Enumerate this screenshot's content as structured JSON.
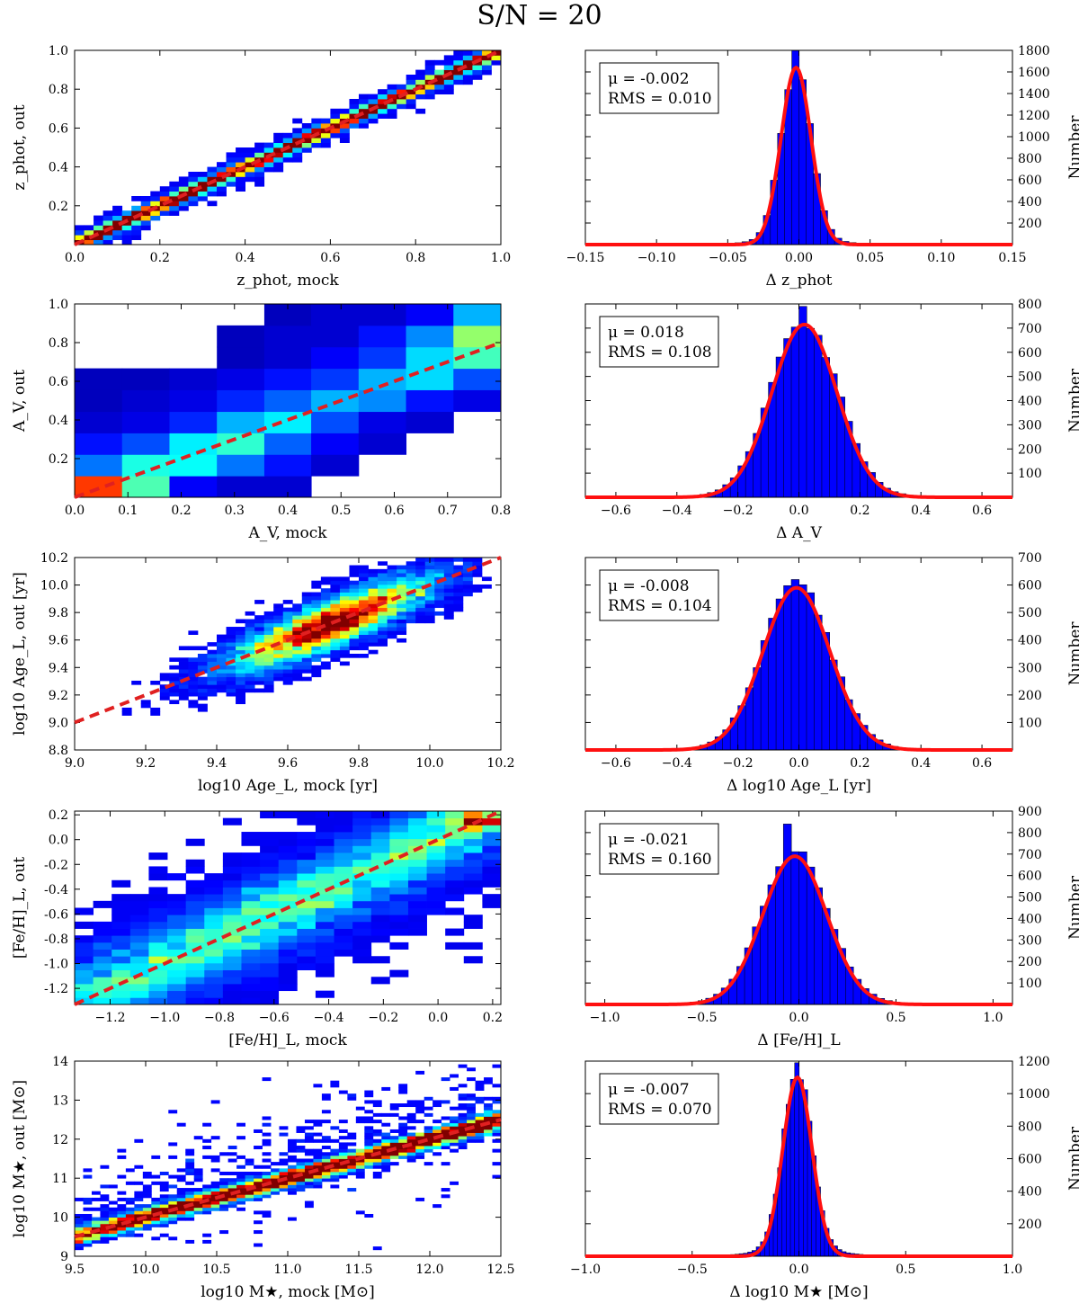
{
  "title": "S/N = 20",
  "colors": {
    "hist_fill": "#0000ff",
    "fit_line": "#ff1010",
    "identity_line": "#e02020"
  },
  "chart_data": [
    {
      "type": "heatmap",
      "id": "z-scatter",
      "xlabel": "z_phot, mock",
      "ylabel": "z_phot, out",
      "xlim": [
        0.0,
        1.0
      ],
      "ylim": [
        0.0,
        1.0
      ],
      "xticks": [
        "0.0",
        "0.2",
        "0.4",
        "0.6",
        "0.8",
        "1.0"
      ],
      "xtick_values": [
        0.0,
        0.2,
        0.4,
        0.6,
        0.8,
        1.0
      ],
      "yticks": [
        "0.2",
        "0.4",
        "0.6",
        "0.8",
        "1.0"
      ],
      "ytick_values": [
        0.2,
        0.4,
        0.6,
        0.8,
        1.0
      ],
      "identity_line": [
        [
          0.0,
          0.0
        ],
        [
          1.0,
          1.0
        ]
      ],
      "model": {
        "kind": "tight",
        "scatter": 0.015,
        "outlier_rate": 0.18,
        "outlier_spread": 0.035,
        "nbins_x": 45,
        "nbins_y": 40,
        "n": 9000,
        "peak_frac": 0.55
      }
    },
    {
      "type": "bar",
      "id": "z-hist",
      "xlabel": "Δ z_phot",
      "ylabel": "Number",
      "xlim": [
        -0.15,
        0.15
      ],
      "ylim": [
        0,
        1800
      ],
      "xticks": [
        "−0.15",
        "−0.10",
        "−0.05",
        "0.00",
        "0.05",
        "0.10",
        "0.15"
      ],
      "xtick_values": [
        -0.15,
        -0.1,
        -0.05,
        0.0,
        0.05,
        0.1,
        0.15
      ],
      "yticks": [
        "200",
        "400",
        "600",
        "800",
        "1000",
        "1200",
        "1400",
        "1600",
        "1800"
      ],
      "ytick_values": [
        200,
        400,
        600,
        800,
        1000,
        1200,
        1400,
        1600,
        1800
      ],
      "mu_label": "μ = -0.002",
      "rms_label": "RMS = 0.010",
      "mu": -0.002,
      "rms": 0.01,
      "fit": {
        "mu": -0.002,
        "sigma": 0.0105,
        "amplitude": 1640
      },
      "bin_width": 0.005,
      "peak_value": 1800,
      "tail_frac": 0.025,
      "tail_sigma": 0.03
    },
    {
      "type": "heatmap",
      "id": "av-scatter",
      "xlabel": "A_V, mock",
      "ylabel": "A_V, out",
      "xlim": [
        0.0,
        0.8
      ],
      "ylim": [
        0.0,
        1.0
      ],
      "xticks": [
        "0.0",
        "0.1",
        "0.2",
        "0.3",
        "0.4",
        "0.5",
        "0.6",
        "0.7",
        "0.8"
      ],
      "xtick_values": [
        0.0,
        0.1,
        0.2,
        0.3,
        0.4,
        0.5,
        0.6,
        0.7,
        0.8
      ],
      "yticks": [
        "0.2",
        "0.4",
        "0.6",
        "0.8",
        "1.0"
      ],
      "ytick_values": [
        0.2,
        0.4,
        0.6,
        0.8,
        1.0
      ],
      "identity_line": [
        [
          0.0,
          0.0
        ],
        [
          0.8,
          0.8
        ]
      ],
      "grid_values": {
        "x_edges": [
          0.0,
          0.089,
          0.178,
          0.267,
          0.356,
          0.444,
          0.533,
          0.622,
          0.711,
          0.8
        ],
        "y_edges": [
          0.0,
          0.111,
          0.222,
          0.333,
          0.444,
          0.556,
          0.667,
          0.778,
          0.889,
          1.0
        ],
        "rows_bottom_to_top": [
          [
            0.82,
            0.45,
            0.12,
            0.08,
            0.08,
            null,
            null,
            null,
            null
          ],
          [
            0.24,
            0.4,
            0.38,
            0.24,
            0.14,
            0.08,
            null,
            null,
            null
          ],
          [
            0.14,
            0.2,
            0.36,
            0.42,
            0.22,
            0.12,
            0.08,
            null,
            null
          ],
          [
            0.08,
            0.1,
            0.16,
            0.3,
            0.36,
            0.2,
            0.1,
            0.08,
            null
          ],
          [
            0.06,
            0.08,
            0.1,
            0.16,
            0.22,
            0.3,
            0.26,
            0.14,
            0.1
          ],
          [
            0.06,
            0.06,
            0.08,
            0.1,
            0.14,
            0.18,
            0.3,
            0.34,
            0.2
          ],
          [
            null,
            null,
            null,
            0.06,
            0.08,
            0.12,
            0.18,
            0.34,
            0.44
          ],
          [
            null,
            null,
            null,
            0.06,
            0.08,
            0.08,
            0.14,
            0.26,
            0.52
          ],
          [
            null,
            null,
            null,
            null,
            0.06,
            0.08,
            0.08,
            0.12,
            0.3
          ]
        ]
      }
    },
    {
      "type": "bar",
      "id": "av-hist",
      "xlabel": "Δ A_V",
      "ylabel": "Number",
      "xlim": [
        -0.7,
        0.7
      ],
      "ylim": [
        0,
        800
      ],
      "xticks": [
        "−0.6",
        "−0.4",
        "−0.2",
        "0.0",
        "0.2",
        "0.4",
        "0.6"
      ],
      "xtick_values": [
        -0.6,
        -0.4,
        -0.2,
        0.0,
        0.2,
        0.4,
        0.6
      ],
      "yticks": [
        "100",
        "200",
        "300",
        "400",
        "500",
        "600",
        "700",
        "800"
      ],
      "ytick_values": [
        100,
        200,
        300,
        400,
        500,
        600,
        700,
        800
      ],
      "mu_label": "μ = 0.018",
      "rms_label": "RMS = 0.108",
      "mu": 0.018,
      "rms": 0.108,
      "fit": {
        "mu": 0.018,
        "sigma": 0.107,
        "amplitude": 715
      },
      "bin_width": 0.025,
      "peak_value": 790,
      "tail_frac": 0.03,
      "tail_sigma": 0.2
    },
    {
      "type": "heatmap",
      "id": "age-scatter",
      "xlabel": "log10 Age_L, mock [yr]",
      "ylabel": "log10 Age_L, out [yr]",
      "xlim": [
        9.0,
        10.2
      ],
      "ylim": [
        8.8,
        10.2
      ],
      "xticks": [
        "9.0",
        "9.2",
        "9.4",
        "9.6",
        "9.8",
        "10.0",
        "10.2"
      ],
      "xtick_values": [
        9.0,
        9.2,
        9.4,
        9.6,
        9.8,
        10.0,
        10.2
      ],
      "yticks": [
        "8.8",
        "9.0",
        "9.2",
        "9.4",
        "9.6",
        "9.8",
        "10.0",
        "10.2"
      ],
      "ytick_values": [
        8.8,
        9.0,
        9.2,
        9.4,
        9.6,
        9.8,
        10.0,
        10.2
      ],
      "identity_line": [
        [
          9.0,
          9.0
        ],
        [
          10.2,
          10.2
        ]
      ],
      "model": {
        "kind": "blob",
        "x_center": 9.72,
        "x_sigma": 0.16,
        "x_min": 9.12,
        "x_max": 10.15,
        "y_sigma": 0.1,
        "y_offset": 0.0,
        "nbins_x": 45,
        "nbins_y": 50,
        "n": 9000,
        "peak_frac": 0.75
      }
    },
    {
      "type": "bar",
      "id": "age-hist",
      "xlabel": "Δ log10 Age_L [yr]",
      "ylabel": "Number",
      "xlim": [
        -0.7,
        0.7
      ],
      "ylim": [
        0,
        700
      ],
      "xticks": [
        "−0.6",
        "−0.4",
        "−0.2",
        "0.0",
        "0.2",
        "0.4",
        "0.6"
      ],
      "xtick_values": [
        -0.6,
        -0.4,
        -0.2,
        0.0,
        0.2,
        0.4,
        0.6
      ],
      "yticks": [
        "100",
        "200",
        "300",
        "400",
        "500",
        "600",
        "700"
      ],
      "ytick_values": [
        100,
        200,
        300,
        400,
        500,
        600,
        700
      ],
      "mu_label": "μ = -0.008",
      "rms_label": "RMS = 0.104",
      "mu": -0.008,
      "rms": 0.104,
      "fit": {
        "mu": -0.008,
        "sigma": 0.11,
        "amplitude": 590
      },
      "bin_width": 0.025,
      "peak_value": 620,
      "tail_frac": 0.03,
      "tail_sigma": 0.2
    },
    {
      "type": "heatmap",
      "id": "feh-scatter",
      "xlabel": "[Fe/H]_L, mock",
      "ylabel": "[Fe/H]_L, out",
      "xlim": [
        -1.33,
        0.23
      ],
      "ylim": [
        -1.33,
        0.23
      ],
      "xticks": [
        "−1.2",
        "−1.0",
        "−0.8",
        "−0.6",
        "−0.4",
        "−0.2",
        "0.0",
        "0.2"
      ],
      "xtick_values": [
        -1.2,
        -1.0,
        -0.8,
        -0.6,
        -0.4,
        -0.2,
        0.0,
        0.2
      ],
      "yticks": [
        "-1.2",
        "-1.0",
        "-0.8",
        "-0.6",
        "-0.4",
        "-0.2",
        "0.0",
        "0.2"
      ],
      "ytick_values": [
        -1.2,
        -1.0,
        -0.8,
        -0.6,
        -0.4,
        -0.2,
        0.0,
        0.2
      ],
      "identity_line": [
        [
          -1.33,
          -1.33
        ],
        [
          0.23,
          0.23
        ]
      ],
      "model": {
        "kind": "wide",
        "x_min": -1.33,
        "x_max": 0.2,
        "y_sigma": 0.17,
        "nbins_x": 23,
        "nbins_y": 28,
        "n": 9000,
        "peak_frac": 0.7,
        "hot_x": 0.15,
        "hot_y": 0.15
      }
    },
    {
      "type": "bar",
      "id": "feh-hist",
      "xlabel": "Δ [Fe/H]_L",
      "ylabel": "Number",
      "xlim": [
        -1.1,
        1.1
      ],
      "ylim": [
        0,
        900
      ],
      "xticks": [
        "−1.0",
        "−0.5",
        "0.0",
        "0.5",
        "1.0"
      ],
      "xtick_values": [
        -1.0,
        -0.5,
        0.0,
        0.5,
        1.0
      ],
      "yticks": [
        "100",
        "200",
        "300",
        "400",
        "500",
        "600",
        "700",
        "800",
        "900"
      ],
      "ytick_values": [
        100,
        200,
        300,
        400,
        500,
        600,
        700,
        800,
        900
      ],
      "mu_label": "μ = -0.021",
      "rms_label": "RMS = 0.160",
      "mu": -0.021,
      "rms": 0.16,
      "fit": {
        "mu": -0.021,
        "sigma": 0.165,
        "amplitude": 690
      },
      "bin_width": 0.04,
      "peak_value": 840,
      "tail_frac": 0.04,
      "tail_sigma": 0.3
    },
    {
      "type": "heatmap",
      "id": "mass-scatter",
      "xlabel": "log10 M★, mock [M⊙]",
      "ylabel": "log10 M★, out [M⊙]",
      "xlim": [
        9.5,
        12.5
      ],
      "ylim": [
        9.0,
        14.0
      ],
      "xticks": [
        "9.5",
        "10.0",
        "10.5",
        "11.0",
        "11.5",
        "12.0",
        "12.5"
      ],
      "xtick_values": [
        9.5,
        10.0,
        10.5,
        11.0,
        11.5,
        12.0,
        12.5
      ],
      "yticks": [
        "9",
        "10",
        "11",
        "12",
        "13",
        "14"
      ],
      "ytick_values": [
        9,
        10,
        11,
        12,
        13,
        14
      ],
      "identity_line": [
        [
          9.5,
          9.5
        ],
        [
          12.5,
          12.5
        ]
      ],
      "model": {
        "kind": "mass",
        "scatter": 0.12,
        "outlier_rate": 0.06,
        "outlier_spread": 0.9,
        "nbins_x": 50,
        "nbins_y": 60,
        "n": 9000,
        "peak_frac": 0.55
      }
    },
    {
      "type": "bar",
      "id": "mass-hist",
      "xlabel": "Δ log10 M★ [M⊙]",
      "ylabel": "Number",
      "xlim": [
        -1.0,
        1.0
      ],
      "ylim": [
        0,
        1200
      ],
      "xticks": [
        "−1.0",
        "−0.5",
        "0.0",
        "0.5",
        "1.0"
      ],
      "xtick_values": [
        -1.0,
        -0.5,
        0.0,
        0.5,
        1.0
      ],
      "yticks": [
        "200",
        "400",
        "600",
        "800",
        "1000",
        "1200"
      ],
      "ytick_values": [
        200,
        400,
        600,
        800,
        1000,
        1200
      ],
      "mu_label": "μ = -0.007",
      "rms_label": "RMS = 0.070",
      "mu": -0.007,
      "rms": 0.07,
      "fit": {
        "mu": -0.007,
        "sigma": 0.068,
        "amplitude": 1100
      },
      "bin_width": 0.02,
      "peak_value": 1190,
      "tail_frac": 0.04,
      "tail_sigma": 0.18
    }
  ]
}
